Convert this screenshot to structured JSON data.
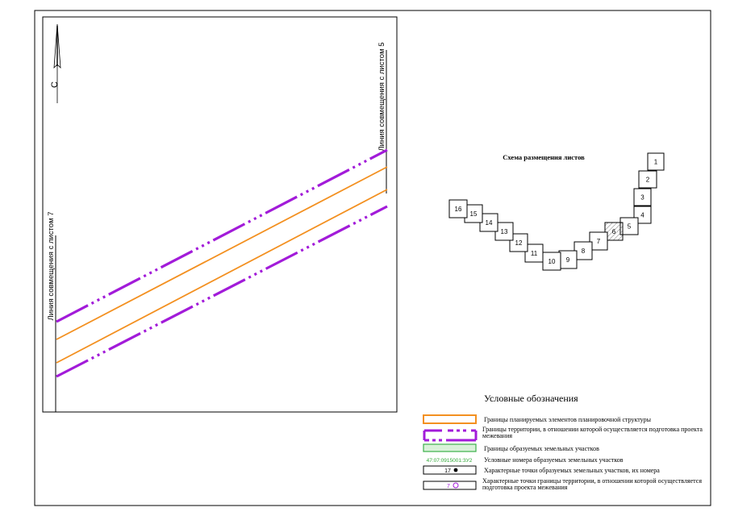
{
  "north_arrow": {
    "label": "С"
  },
  "match_lines": {
    "left": "Линия совмещения с листом 7",
    "right": "Линия совмещения с листом 5"
  },
  "sheet_scheme": {
    "title": "Схема размещения листов",
    "current_sheet": "6",
    "sheets": [
      "1",
      "2",
      "3",
      "4",
      "5",
      "6",
      "7",
      "8",
      "9",
      "10",
      "11",
      "12",
      "13",
      "14",
      "15",
      "16"
    ]
  },
  "legend": {
    "title": "Условные обозначения",
    "items": [
      {
        "label": "Границы планируемых элементов планировочной структуры"
      },
      {
        "label": "Границы территории, в отношении которой осуществляется подготовка проекта межевания"
      },
      {
        "label": "Границы образуемых земельных участков"
      },
      {
        "sample": "47:07:0915001:ЗУ2",
        "label": "Условные номера образуемых земельных участков"
      },
      {
        "sample": "17",
        "label": "Характерные точки образуемых земельных участков, их номера"
      },
      {
        "sample": "7",
        "label": "Характерные точки границы территории, в отношении которой осуществляется подготовка проекта межевания"
      }
    ]
  },
  "colors": {
    "planning_boundary": "#f39020",
    "territory_boundary": "#a21bd9",
    "parcel_boundary": "#3bb04a",
    "parcel_number": "#2fa836",
    "boundary_point": "#a21bd9"
  }
}
